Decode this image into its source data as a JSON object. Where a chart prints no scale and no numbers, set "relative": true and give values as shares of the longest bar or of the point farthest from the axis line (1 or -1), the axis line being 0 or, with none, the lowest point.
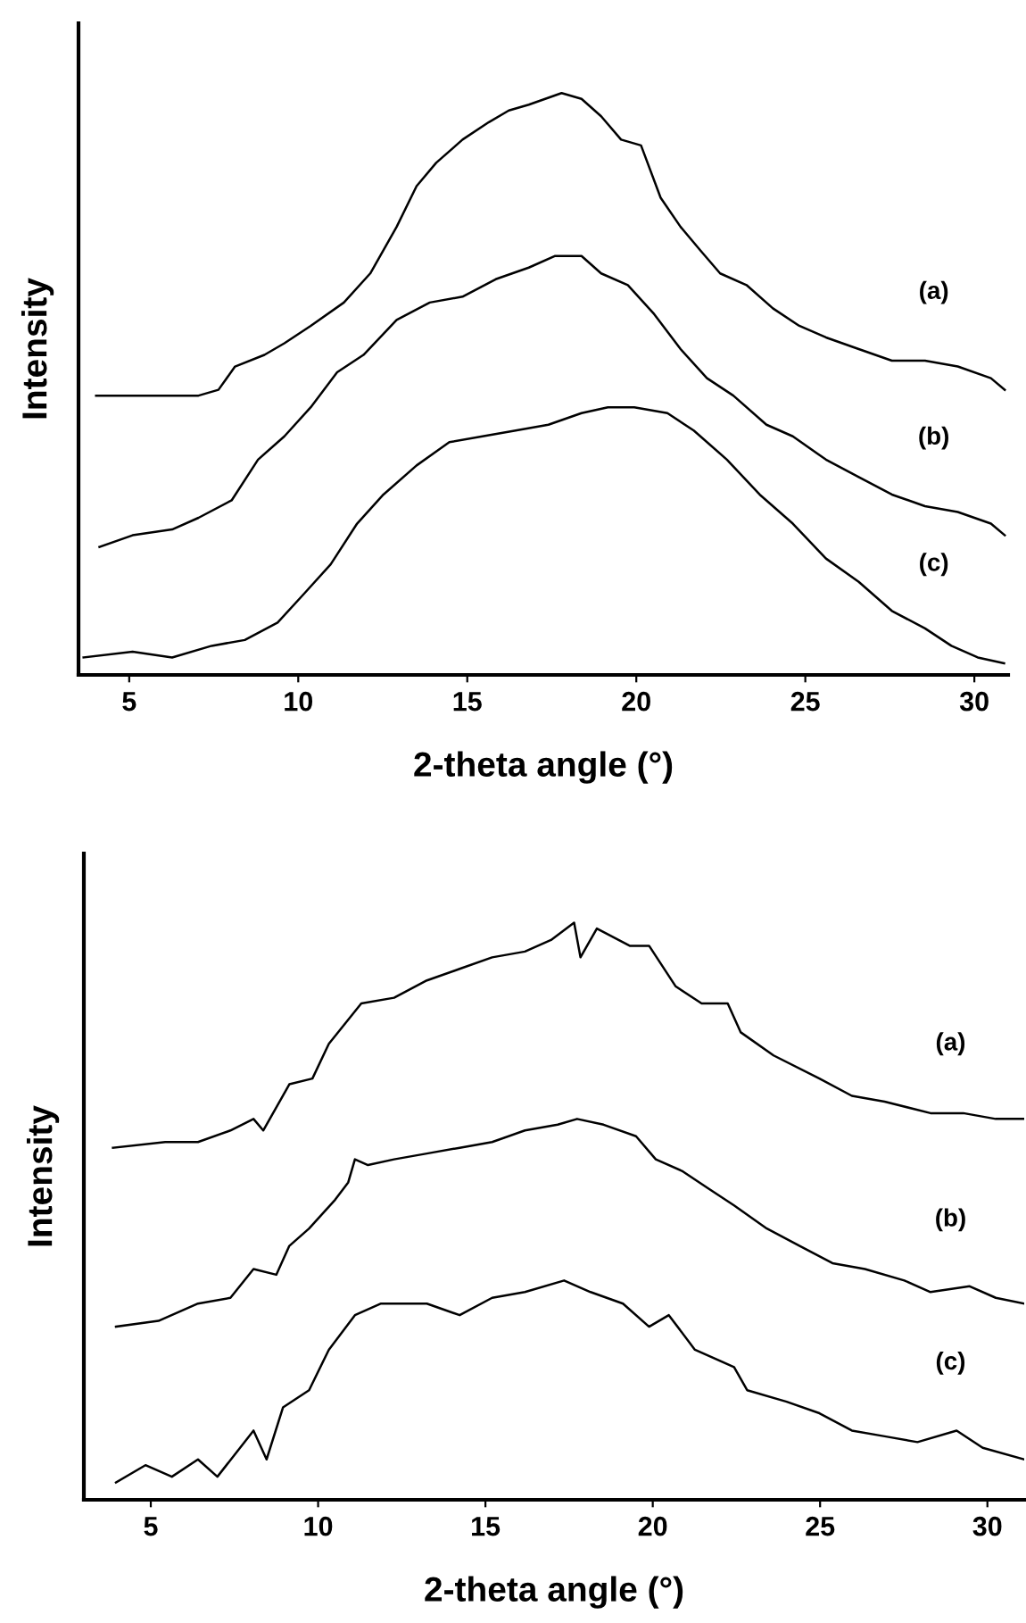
{
  "chart_data": [
    {
      "type": "line",
      "relative": true,
      "xlabel": "2-theta angle (°)",
      "ylabel": "Intensity",
      "xlim": [
        3.5,
        31
      ],
      "xticks": [
        5,
        10,
        15,
        20,
        25,
        30
      ],
      "grid": false,
      "legend": false,
      "marker": "none",
      "line_style": "solid",
      "series": [
        {
          "name": "(a)",
          "color": "#000000",
          "x": [
            4.02,
            7.05,
            7.64,
            8.13,
            9.0,
            9.59,
            10.37,
            11.35,
            12.13,
            12.91,
            13.5,
            14.08,
            14.86,
            15.64,
            16.23,
            16.82,
            17.79,
            18.38,
            18.96,
            19.55,
            20.14,
            20.72,
            21.31,
            21.89,
            22.48,
            23.26,
            24.04,
            24.82,
            25.61,
            26.58,
            27.56,
            28.54,
            29.51,
            30.49,
            30.9
          ],
          "values": [
            0.48,
            0.48,
            0.49,
            0.53,
            0.55,
            0.57,
            0.6,
            0.64,
            0.69,
            0.77,
            0.84,
            0.88,
            0.92,
            0.95,
            0.97,
            0.98,
            1.0,
            0.99,
            0.96,
            0.92,
            0.91,
            0.82,
            0.77,
            0.73,
            0.69,
            0.67,
            0.63,
            0.6,
            0.58,
            0.56,
            0.54,
            0.54,
            0.53,
            0.51,
            0.49
          ]
        },
        {
          "name": "(b)",
          "color": "#000000",
          "x": [
            4.12,
            5.1,
            6.27,
            7.05,
            8.03,
            8.81,
            9.59,
            10.37,
            11.15,
            11.93,
            12.91,
            13.89,
            14.86,
            15.84,
            16.82,
            17.6,
            18.38,
            18.96,
            19.75,
            20.53,
            21.31,
            22.09,
            22.87,
            23.85,
            24.63,
            25.61,
            26.58,
            27.56,
            28.54,
            29.51,
            30.49,
            30.9
          ],
          "values": [
            0.22,
            0.24,
            0.25,
            0.27,
            0.3,
            0.37,
            0.41,
            0.46,
            0.52,
            0.55,
            0.61,
            0.64,
            0.65,
            0.68,
            0.7,
            0.72,
            0.72,
            0.69,
            0.67,
            0.62,
            0.56,
            0.51,
            0.48,
            0.43,
            0.41,
            0.37,
            0.34,
            0.31,
            0.29,
            0.28,
            0.26,
            0.24
          ]
        },
        {
          "name": "(c)",
          "color": "#000000",
          "x": [
            3.65,
            5.1,
            6.27,
            7.44,
            8.42,
            9.39,
            10.18,
            10.96,
            11.74,
            12.52,
            13.5,
            14.47,
            15.45,
            16.43,
            17.4,
            18.38,
            19.16,
            19.94,
            20.92,
            21.7,
            22.68,
            23.65,
            24.63,
            25.61,
            26.58,
            27.56,
            28.54,
            29.32,
            30.1,
            30.88
          ],
          "values": [
            0.03,
            0.04,
            0.03,
            0.05,
            0.06,
            0.09,
            0.14,
            0.19,
            0.26,
            0.31,
            0.36,
            0.4,
            0.41,
            0.42,
            0.43,
            0.45,
            0.46,
            0.46,
            0.45,
            0.42,
            0.37,
            0.31,
            0.26,
            0.2,
            0.16,
            0.11,
            0.08,
            0.05,
            0.03,
            0.02
          ]
        }
      ]
    },
    {
      "type": "line",
      "relative": true,
      "xlabel": "2-theta angle (°)",
      "ylabel": "Intensity",
      "xlim": [
        3,
        31.1
      ],
      "xticks": [
        5,
        10,
        15,
        20,
        25,
        30
      ],
      "grid": false,
      "legend": false,
      "marker": "none",
      "line_style": "solid",
      "series": [
        {
          "name": "(a)",
          "color": "#000000",
          "x": [
            3.87,
            5.43,
            6.41,
            7.38,
            8.07,
            8.36,
            9.14,
            9.83,
            10.32,
            11.29,
            12.27,
            13.25,
            14.23,
            15.2,
            16.18,
            16.96,
            17.65,
            17.84,
            18.33,
            19.31,
            19.89,
            20.68,
            21.46,
            22.24,
            22.63,
            23.61,
            24.98,
            25.95,
            26.93,
            28.3,
            29.28,
            30.25,
            31.1
          ],
          "values": [
            0.61,
            0.62,
            0.62,
            0.64,
            0.66,
            0.64,
            0.72,
            0.73,
            0.79,
            0.86,
            0.87,
            0.9,
            0.92,
            0.94,
            0.95,
            0.97,
            1.0,
            0.94,
            0.99,
            0.96,
            0.96,
            0.89,
            0.86,
            0.86,
            0.81,
            0.77,
            0.73,
            0.7,
            0.69,
            0.67,
            0.67,
            0.66,
            0.66
          ]
        },
        {
          "name": "(b)",
          "color": "#000000",
          "x": [
            3.96,
            5.23,
            6.41,
            7.38,
            8.07,
            8.75,
            9.14,
            9.73,
            10.51,
            10.9,
            11.1,
            11.49,
            12.27,
            13.25,
            14.23,
            15.2,
            16.18,
            17.16,
            17.74,
            18.53,
            19.5,
            20.09,
            20.87,
            21.65,
            22.43,
            23.41,
            24.39,
            25.37,
            26.34,
            27.52,
            28.3,
            29.47,
            30.25,
            31.1
          ],
          "values": [
            0.3,
            0.31,
            0.34,
            0.35,
            0.4,
            0.39,
            0.44,
            0.47,
            0.52,
            0.55,
            0.59,
            0.58,
            0.59,
            0.6,
            0.61,
            0.62,
            0.64,
            0.65,
            0.66,
            0.65,
            0.63,
            0.59,
            0.57,
            0.54,
            0.51,
            0.47,
            0.44,
            0.41,
            0.4,
            0.38,
            0.36,
            0.37,
            0.35,
            0.34
          ]
        },
        {
          "name": "(c)",
          "color": "#000000",
          "x": [
            3.96,
            4.84,
            5.63,
            6.41,
            6.99,
            8.07,
            8.46,
            8.95,
            9.73,
            10.32,
            11.1,
            11.88,
            13.25,
            14.23,
            15.2,
            16.18,
            17.35,
            18.14,
            19.11,
            19.89,
            20.48,
            21.26,
            22.43,
            22.82,
            24.0,
            24.98,
            25.95,
            26.93,
            27.91,
            29.08,
            29.86,
            31.1
          ],
          "values": [
            0.03,
            0.06,
            0.04,
            0.07,
            0.04,
            0.12,
            0.07,
            0.16,
            0.19,
            0.26,
            0.32,
            0.34,
            0.34,
            0.32,
            0.35,
            0.36,
            0.38,
            0.36,
            0.34,
            0.3,
            0.32,
            0.26,
            0.23,
            0.19,
            0.17,
            0.15,
            0.12,
            0.11,
            0.1,
            0.12,
            0.09,
            0.07
          ]
        }
      ]
    }
  ]
}
